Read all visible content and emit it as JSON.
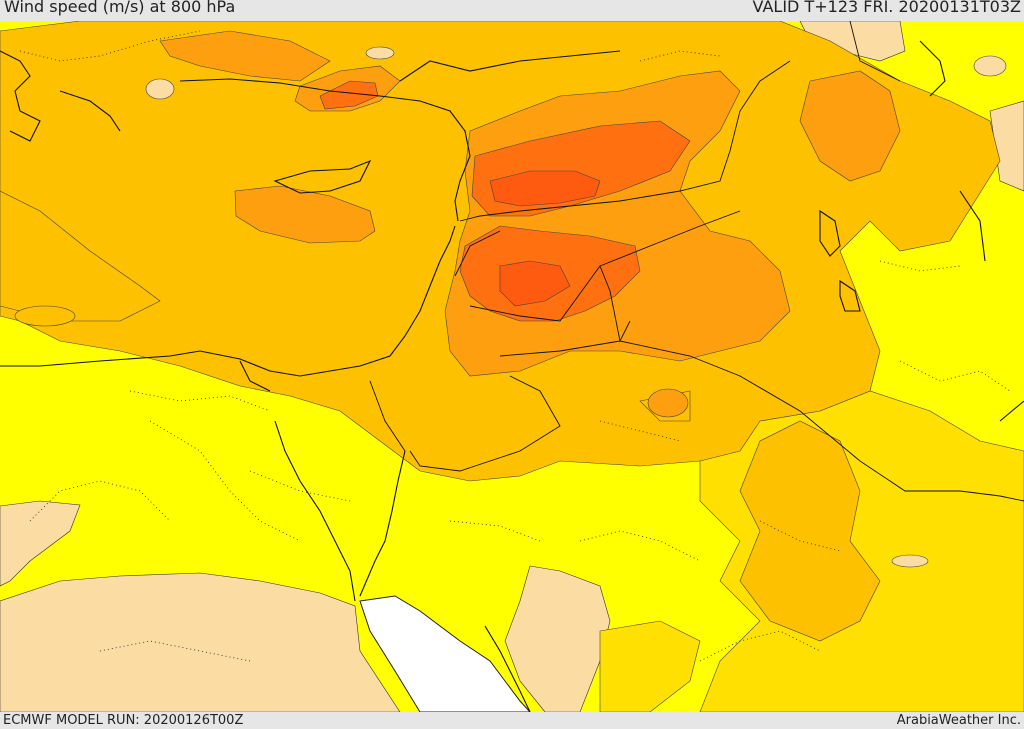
{
  "header": {
    "title": "Wind speed (m/s) at 800 hPa",
    "valid_time": "VALID T+123 FRI. 20200131T03Z"
  },
  "footer": {
    "model_run": "ECMWF MODEL RUN: 20200126T00Z",
    "credit": "ArabiaWeather Inc."
  },
  "map": {
    "field": "wind speed at 800 hPa",
    "colors": {
      "lowest": "#fbdca3",
      "low": "#ffff00",
      "moderate": "#fec100",
      "elevated": "#fe9f10",
      "high": "#fe7010",
      "peak": "#fe5a10",
      "no_data": "#ffffff",
      "alt_yellow": "#ffe000"
    },
    "overlays": [
      "coastlines",
      "country borders",
      "dotted internal boundaries",
      "contour lines"
    ]
  }
}
